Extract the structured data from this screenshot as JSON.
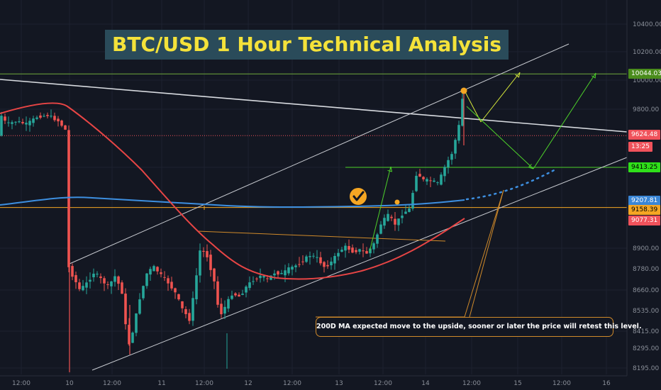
{
  "chart_data": {
    "type": "candlestick",
    "title": "BTC/USD 1 Hour Technical Analysis",
    "y_ticks": [
      "10400.00",
      "10200.00",
      "10000.00",
      "9800.00",
      "9624.48",
      "9413.25",
      "9207.81",
      "9158.39",
      "9077.31",
      "8900.00",
      "8780.00",
      "8660.00",
      "8535.00",
      "8415.00",
      "8295.00",
      "8195.00"
    ],
    "y_tick_values": [
      10400,
      10200,
      10000,
      9800,
      9624.48,
      9413.25,
      9207.81,
      9158.39,
      9077.31,
      8900,
      8780,
      8660,
      8535,
      8415,
      8295,
      8195
    ],
    "x_ticks": [
      "12:00",
      "10",
      "12:00",
      "11",
      "12:00",
      "12",
      "12:00",
      "13",
      "12:00",
      "14",
      "12:00",
      "15",
      "12:00",
      "16"
    ],
    "ylim": [
      8170,
      10480
    ],
    "price_tags": [
      {
        "label": "10044.03",
        "value": 10044.03,
        "bg": "#4a8c1c",
        "color": "#ffffff"
      },
      {
        "label": "9624.48",
        "value": 9624.48,
        "bg": "#f0525b",
        "color": "#ffffff"
      },
      {
        "label": "13:25",
        "value": 9573,
        "bg": "#f0525b",
        "color": "#ffffff"
      },
      {
        "label": "9413.25",
        "value": 9413.25,
        "bg": "#2fe01a",
        "color": "#000000"
      },
      {
        "label": "9207.81",
        "value": 9207.81,
        "bg": "#3a86d6",
        "color": "#ffffff"
      },
      {
        "label": "9158.39",
        "value": 9158.39,
        "bg": "#f5a623",
        "color": "#000000"
      },
      {
        "label": "9077.31",
        "value": 9077.31,
        "bg": "#f0525b",
        "color": "#ffffff"
      }
    ],
    "horizontal_levels": [
      {
        "name": "resistance",
        "value": 10044.03,
        "color": "#6fa83a"
      },
      {
        "name": "current-price",
        "value": 9624.48,
        "color": "#f0525b"
      },
      {
        "name": "support-target",
        "value": 9413.25,
        "color": "#4dd12a"
      },
      {
        "name": "ma-level",
        "value": 9158.39,
        "color": "#f5a623"
      }
    ],
    "annotation": "200D MA expected move to the upside, sooner or later the price will retest this level.",
    "colors": {
      "bull": "#26a69a",
      "bear": "#ef5350",
      "ma200": "#3d8fe0",
      "ma50": "#e84545",
      "background": "#131722"
    }
  }
}
